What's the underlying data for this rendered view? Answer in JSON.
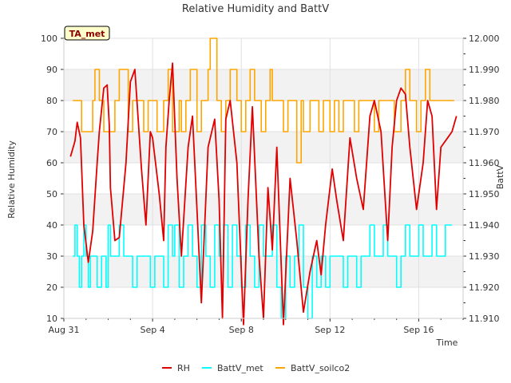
{
  "chart_data": {
    "type": "line",
    "title": "Relative Humidity and BattV",
    "station_badge": "TA_met",
    "xlabel": "Time",
    "ylabel_left": "Relative Humidity",
    "ylabel_right": "BattV",
    "x_ticks": [
      "Aug 31",
      "Sep 4",
      "Sep 8",
      "Sep 12",
      "Sep 16"
    ],
    "x_tick_days": [
      0,
      4,
      8,
      12,
      16
    ],
    "xlim_days": [
      0,
      18
    ],
    "y_left": {
      "ylim": [
        10,
        100
      ],
      "ticks": [
        10,
        20,
        30,
        40,
        50,
        60,
        70,
        80,
        90,
        100
      ]
    },
    "y_right": {
      "ylim": [
        11.91,
        12.0
      ],
      "ticks": [
        "11.910",
        "11.920",
        "11.930",
        "11.940",
        "11.950",
        "11.960",
        "11.970",
        "11.980",
        "11.990",
        "12.000"
      ]
    },
    "background_bands": true,
    "legend_position": "bottom",
    "series": [
      {
        "name": "RH",
        "color": "#e00000",
        "axis": "left",
        "x": [
          0.3,
          0.5,
          0.6,
          0.75,
          0.9,
          1.1,
          1.3,
          1.5,
          1.6,
          1.8,
          1.95,
          2.05,
          2.1,
          2.3,
          2.5,
          2.8,
          3.0,
          3.2,
          3.5,
          3.7,
          3.9,
          4.0,
          4.3,
          4.5,
          4.6,
          4.75,
          4.9,
          5.1,
          5.3,
          5.6,
          5.8,
          6.0,
          6.2,
          6.5,
          6.8,
          7.0,
          7.15,
          7.3,
          7.5,
          7.8,
          8.1,
          8.3,
          8.5,
          8.8,
          9.0,
          9.2,
          9.4,
          9.6,
          9.9,
          10.2,
          10.5,
          10.8,
          11.1,
          11.4,
          11.6,
          11.8,
          12.1,
          12.3,
          12.6,
          12.9,
          13.2,
          13.5,
          13.8,
          14.0,
          14.3,
          14.6,
          14.8,
          15.0,
          15.2,
          15.4,
          15.6,
          15.9,
          16.2,
          16.4,
          16.6,
          16.8,
          17.0,
          17.3,
          17.5,
          17.7
        ],
        "values": [
          62,
          67,
          73,
          68,
          40,
          28,
          38,
          60,
          70,
          84,
          85,
          72,
          52,
          35,
          36,
          60,
          86,
          90,
          58,
          40,
          70,
          68,
          50,
          35,
          65,
          80,
          92,
          55,
          30,
          65,
          75,
          45,
          15,
          65,
          74,
          48,
          10,
          74,
          80,
          60,
          8,
          48,
          78,
          30,
          10,
          52,
          32,
          65,
          8,
          55,
          35,
          12,
          25,
          35,
          24,
          40,
          58,
          48,
          35,
          68,
          55,
          45,
          75,
          80,
          70,
          35,
          65,
          80,
          84,
          82,
          65,
          45,
          60,
          80,
          75,
          45,
          65,
          68,
          70,
          75
        ]
      },
      {
        "name": "BattV_met",
        "color": "#00ffff",
        "axis": "right",
        "x": [
          0.4,
          0.5,
          0.6,
          0.7,
          0.8,
          0.9,
          1.0,
          1.1,
          1.2,
          1.3,
          1.5,
          1.7,
          1.9,
          2.0,
          2.1,
          2.3,
          2.5,
          2.7,
          2.9,
          3.1,
          3.3,
          3.5,
          3.7,
          3.9,
          4.1,
          4.3,
          4.5,
          4.7,
          4.9,
          5.0,
          5.2,
          5.4,
          5.6,
          5.8,
          6.0,
          6.2,
          6.4,
          6.6,
          6.8,
          7.0,
          7.2,
          7.4,
          7.6,
          7.8,
          8.0,
          8.2,
          8.4,
          8.6,
          8.8,
          9.0,
          9.2,
          9.4,
          9.6,
          9.8,
          10.0,
          10.2,
          10.4,
          10.6,
          10.8,
          11.0,
          11.2,
          11.4,
          11.6,
          11.8,
          12.0,
          12.2,
          12.4,
          12.6,
          12.8,
          13.0,
          13.2,
          13.4,
          13.6,
          13.8,
          14.0,
          14.2,
          14.4,
          14.6,
          14.8,
          15.0,
          15.2,
          15.4,
          15.6,
          15.8,
          16.0,
          16.2,
          16.4,
          16.6,
          16.8,
          17.0,
          17.2,
          17.5
        ],
        "values": [
          11.93,
          11.94,
          11.93,
          11.92,
          11.93,
          11.94,
          11.93,
          11.92,
          11.93,
          11.93,
          11.92,
          11.93,
          11.92,
          11.94,
          11.93,
          11.93,
          11.94,
          11.93,
          11.93,
          11.92,
          11.93,
          11.93,
          11.93,
          11.92,
          11.93,
          11.93,
          11.92,
          11.94,
          11.93,
          11.94,
          11.92,
          11.93,
          11.94,
          11.93,
          11.92,
          11.94,
          11.93,
          11.92,
          11.94,
          11.93,
          11.94,
          11.92,
          11.94,
          11.93,
          11.92,
          11.94,
          11.93,
          11.92,
          11.94,
          11.93,
          11.93,
          11.94,
          11.92,
          11.91,
          11.93,
          11.92,
          11.93,
          11.94,
          11.92,
          11.91,
          11.93,
          11.92,
          11.93,
          11.92,
          11.93,
          11.93,
          11.93,
          11.92,
          11.93,
          11.93,
          11.92,
          11.93,
          11.93,
          11.94,
          11.93,
          11.93,
          11.94,
          11.93,
          11.93,
          11.92,
          11.93,
          11.94,
          11.93,
          11.93,
          11.94,
          11.93,
          11.93,
          11.94,
          11.93,
          11.93,
          11.94,
          11.94
        ]
      },
      {
        "name": "BattV_soilco2",
        "color": "#ffa500",
        "axis": "right",
        "x": [
          0.4,
          0.7,
          0.8,
          1.1,
          1.3,
          1.4,
          1.6,
          1.8,
          2.1,
          2.3,
          2.5,
          2.9,
          3.1,
          3.3,
          3.6,
          3.8,
          4.0,
          4.2,
          4.5,
          4.7,
          4.9,
          5.2,
          5.3,
          5.5,
          5.7,
          6.0,
          6.2,
          6.5,
          6.6,
          6.9,
          7.1,
          7.3,
          7.5,
          7.8,
          8.0,
          8.2,
          8.4,
          8.6,
          8.9,
          9.1,
          9.3,
          9.4,
          9.6,
          9.9,
          10.1,
          10.3,
          10.5,
          10.7,
          10.8,
          11.1,
          11.3,
          11.5,
          11.7,
          12.0,
          12.2,
          12.4,
          12.6,
          12.9,
          13.1,
          13.3,
          13.5,
          13.8,
          14.0,
          14.2,
          14.5,
          14.7,
          14.9,
          15.2,
          15.4,
          15.6,
          15.9,
          16.1,
          16.3,
          16.5,
          16.8,
          17.0,
          17.3,
          17.6
        ],
        "values": [
          11.98,
          11.98,
          11.97,
          11.97,
          11.98,
          11.99,
          11.98,
          11.97,
          11.97,
          11.98,
          11.99,
          11.97,
          11.98,
          11.98,
          11.97,
          11.98,
          11.98,
          11.97,
          11.98,
          11.99,
          11.97,
          11.98,
          11.97,
          11.98,
          11.99,
          11.97,
          11.98,
          11.99,
          12.0,
          11.98,
          11.97,
          11.98,
          11.99,
          11.98,
          11.97,
          11.98,
          11.99,
          11.98,
          11.97,
          11.98,
          11.99,
          11.98,
          11.98,
          11.97,
          11.98,
          11.98,
          11.96,
          11.98,
          11.97,
          11.98,
          11.98,
          11.97,
          11.98,
          11.97,
          11.98,
          11.97,
          11.98,
          11.98,
          11.97,
          11.98,
          11.98,
          11.98,
          11.97,
          11.98,
          11.98,
          11.98,
          11.97,
          11.98,
          11.99,
          11.98,
          11.97,
          11.98,
          11.99,
          11.98,
          11.98,
          11.98,
          11.98,
          11.98
        ]
      }
    ]
  }
}
